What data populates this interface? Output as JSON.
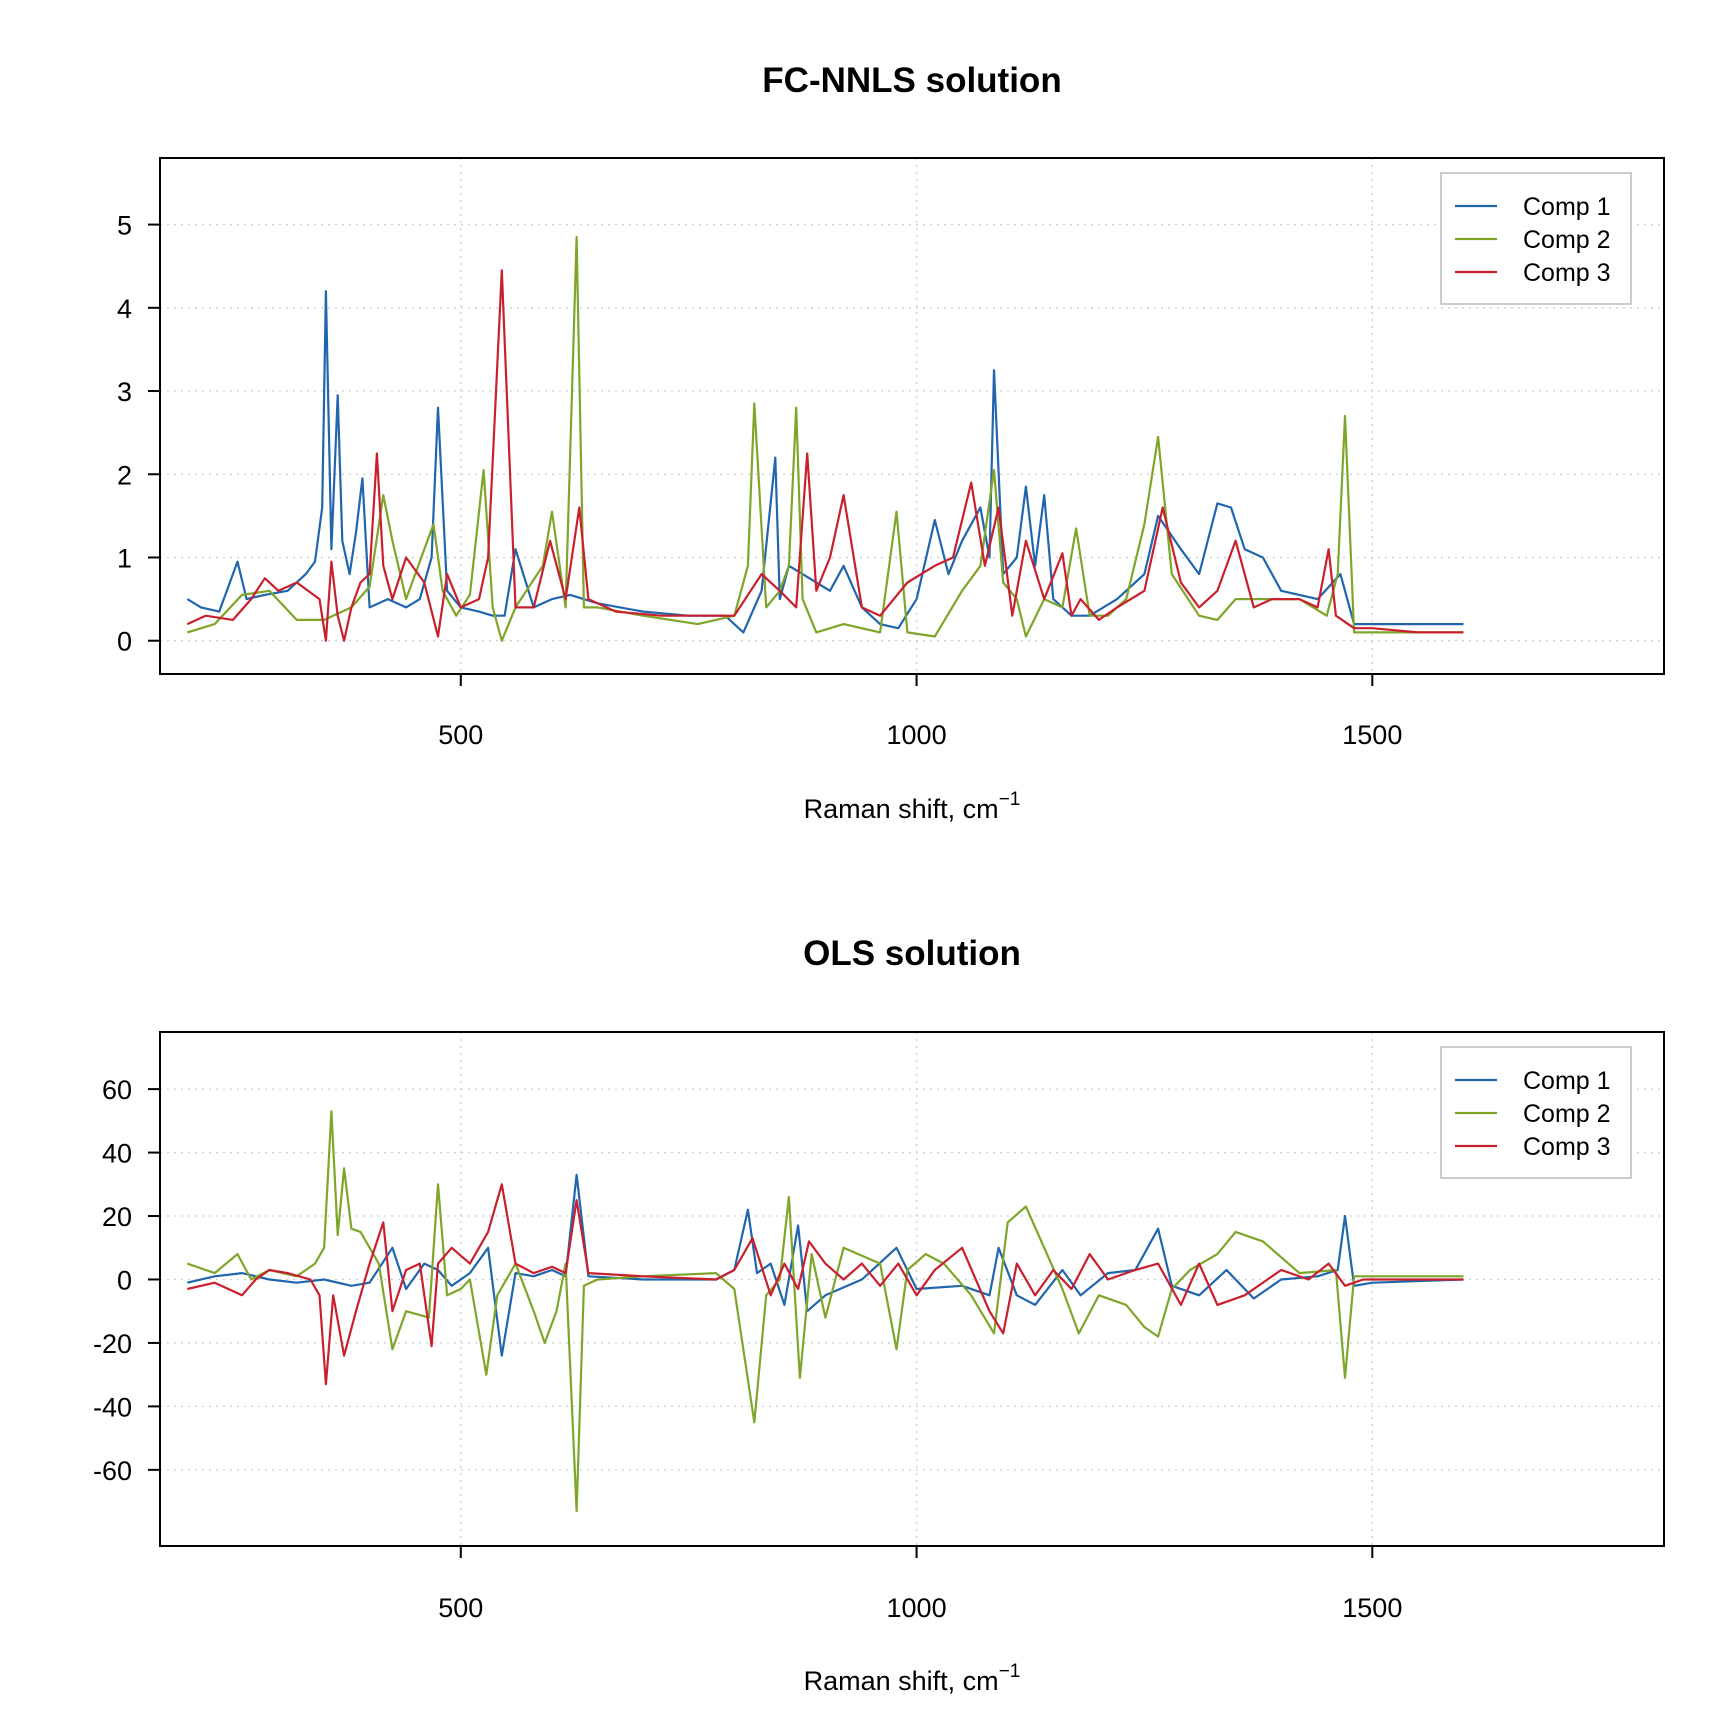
{
  "figure": {
    "background": "#ffffff"
  },
  "chart_data": [
    {
      "type": "line",
      "title": "FC-NNLS solution",
      "xlabel": "Raman shift, cm",
      "xlabel_superscript": "−1",
      "ylabel": "",
      "xlim": [
        170,
        1820
      ],
      "ylim": [
        -0.4,
        5.8
      ],
      "xticks": [
        500,
        1000,
        1500
      ],
      "yticks": [
        0,
        1,
        2,
        3,
        4,
        5
      ],
      "grid": true,
      "legend": "top-right",
      "colors": {
        "Comp 1": "#2166ac",
        "Comp 2": "#7fa52a",
        "Comp 3": "#c8202e"
      },
      "series": [
        {
          "name": "Comp 1",
          "x": [
            200,
            215,
            235,
            255,
            265,
            285,
            310,
            330,
            340,
            348,
            352,
            358,
            365,
            370,
            378,
            385,
            392,
            400,
            420,
            440,
            455,
            468,
            475,
            485,
            500,
            520,
            535,
            548,
            560,
            580,
            600,
            620,
            650,
            700,
            750,
            790,
            810,
            830,
            845,
            850,
            860,
            875,
            890,
            905,
            920,
            940,
            960,
            980,
            1000,
            1020,
            1035,
            1050,
            1070,
            1080,
            1085,
            1095,
            1110,
            1120,
            1130,
            1140,
            1150,
            1170,
            1190,
            1220,
            1250,
            1265,
            1290,
            1310,
            1330,
            1345,
            1360,
            1380,
            1400,
            1420,
            1440,
            1465,
            1480,
            1500,
            1550,
            1600
          ],
          "y": [
            0.5,
            0.4,
            0.35,
            0.95,
            0.5,
            0.55,
            0.6,
            0.8,
            0.95,
            1.6,
            4.2,
            1.1,
            2.95,
            1.2,
            0.8,
            1.3,
            1.95,
            0.4,
            0.5,
            0.4,
            0.5,
            1.0,
            2.8,
            0.6,
            0.4,
            0.35,
            0.3,
            0.3,
            1.1,
            0.4,
            0.5,
            0.55,
            0.45,
            0.35,
            0.3,
            0.3,
            0.1,
            0.6,
            2.2,
            0.5,
            0.9,
            0.8,
            0.7,
            0.6,
            0.9,
            0.4,
            0.2,
            0.15,
            0.5,
            1.45,
            0.8,
            1.2,
            1.6,
            1.0,
            3.25,
            0.8,
            1.0,
            1.85,
            0.9,
            1.75,
            0.5,
            0.3,
            0.3,
            0.5,
            0.8,
            1.5,
            1.1,
            0.8,
            1.65,
            1.6,
            1.1,
            1.0,
            0.6,
            0.55,
            0.5,
            0.8,
            0.2,
            0.2,
            0.2,
            0.2
          ]
        },
        {
          "name": "Comp 2",
          "x": [
            200,
            230,
            260,
            290,
            320,
            350,
            380,
            400,
            415,
            425,
            440,
            460,
            470,
            480,
            495,
            510,
            525,
            535,
            545,
            560,
            590,
            600,
            615,
            627,
            635,
            650,
            700,
            760,
            800,
            815,
            822,
            835,
            850,
            860,
            868,
            875,
            890,
            920,
            960,
            978,
            990,
            1020,
            1050,
            1070,
            1085,
            1095,
            1110,
            1120,
            1140,
            1160,
            1175,
            1190,
            1210,
            1230,
            1250,
            1265,
            1280,
            1310,
            1330,
            1350,
            1380,
            1420,
            1450,
            1462,
            1470,
            1480,
            1500,
            1550,
            1600
          ],
          "y": [
            0.1,
            0.2,
            0.55,
            0.6,
            0.25,
            0.25,
            0.4,
            0.65,
            1.75,
            1.2,
            0.5,
            1.1,
            1.4,
            0.6,
            0.3,
            0.55,
            2.05,
            0.4,
            0.0,
            0.4,
            0.9,
            1.55,
            0.4,
            4.85,
            0.4,
            0.4,
            0.3,
            0.2,
            0.3,
            0.9,
            2.85,
            0.4,
            0.6,
            0.9,
            2.8,
            0.5,
            0.1,
            0.2,
            0.1,
            1.55,
            0.1,
            0.05,
            0.6,
            0.9,
            2.05,
            0.7,
            0.5,
            0.05,
            0.5,
            0.4,
            1.35,
            0.3,
            0.3,
            0.5,
            1.4,
            2.45,
            0.8,
            0.3,
            0.25,
            0.5,
            0.5,
            0.5,
            0.3,
            0.8,
            2.7,
            0.1,
            0.1,
            0.1,
            0.1
          ]
        },
        {
          "name": "Comp 3",
          "x": [
            200,
            220,
            250,
            270,
            285,
            300,
            320,
            345,
            352,
            358,
            365,
            372,
            380,
            390,
            400,
            408,
            415,
            425,
            440,
            460,
            475,
            485,
            500,
            520,
            530,
            545,
            560,
            580,
            598,
            615,
            630,
            640,
            670,
            720,
            760,
            800,
            830,
            850,
            868,
            880,
            890,
            905,
            920,
            940,
            960,
            990,
            1020,
            1040,
            1060,
            1075,
            1090,
            1105,
            1120,
            1140,
            1160,
            1170,
            1180,
            1200,
            1220,
            1250,
            1270,
            1290,
            1310,
            1330,
            1350,
            1370,
            1390,
            1420,
            1440,
            1452,
            1460,
            1480,
            1500,
            1550,
            1600
          ],
          "y": [
            0.2,
            0.3,
            0.25,
            0.5,
            0.75,
            0.6,
            0.7,
            0.5,
            0.0,
            0.95,
            0.3,
            0.0,
            0.4,
            0.7,
            0.8,
            2.25,
            0.9,
            0.5,
            1.0,
            0.7,
            0.05,
            0.8,
            0.4,
            0.5,
            1.0,
            4.45,
            0.4,
            0.4,
            1.2,
            0.5,
            1.6,
            0.5,
            0.35,
            0.3,
            0.3,
            0.3,
            0.8,
            0.6,
            0.4,
            2.25,
            0.6,
            1.0,
            1.75,
            0.4,
            0.3,
            0.7,
            0.9,
            1.0,
            1.9,
            0.9,
            1.6,
            0.3,
            1.2,
            0.5,
            1.05,
            0.3,
            0.5,
            0.25,
            0.4,
            0.6,
            1.6,
            0.7,
            0.4,
            0.6,
            1.2,
            0.4,
            0.5,
            0.5,
            0.4,
            1.1,
            0.3,
            0.15,
            0.15,
            0.1,
            0.1
          ]
        }
      ]
    },
    {
      "type": "line",
      "title": "OLS solution",
      "xlabel": "Raman shift, cm",
      "xlabel_superscript": "−1",
      "ylabel": "",
      "xlim": [
        170,
        1820
      ],
      "ylim": [
        -84,
        78
      ],
      "xticks": [
        500,
        1000,
        1500
      ],
      "yticks": [
        -60,
        -40,
        -20,
        0,
        20,
        40,
        60
      ],
      "grid": true,
      "legend": "top-right",
      "colors": {
        "Comp 1": "#2166ac",
        "Comp 2": "#7fa52a",
        "Comp 3": "#c8202e"
      },
      "series": [
        {
          "name": "Comp 1",
          "x": [
            200,
            230,
            260,
            290,
            320,
            350,
            380,
            400,
            425,
            440,
            460,
            475,
            490,
            510,
            530,
            545,
            560,
            580,
            600,
            615,
            627,
            640,
            700,
            780,
            800,
            815,
            825,
            840,
            855,
            870,
            880,
            900,
            940,
            978,
            1000,
            1050,
            1080,
            1090,
            1110,
            1130,
            1160,
            1180,
            1210,
            1240,
            1265,
            1280,
            1310,
            1340,
            1370,
            1400,
            1440,
            1462,
            1470,
            1480,
            1500,
            1600
          ],
          "y": [
            -1,
            1,
            2,
            0,
            -1,
            0,
            -2,
            -1,
            10,
            -3,
            5,
            3,
            -2,
            2,
            10,
            -24,
            2,
            1,
            3,
            1,
            33,
            1,
            0,
            0,
            3,
            22,
            2,
            5,
            -8,
            17,
            -10,
            -5,
            0,
            10,
            -3,
            -2,
            -5,
            10,
            -5,
            -8,
            3,
            -5,
            2,
            3,
            16,
            -2,
            -5,
            3,
            -6,
            0,
            1,
            3,
            20,
            -2,
            -1,
            0
          ]
        },
        {
          "name": "Comp 2",
          "x": [
            200,
            230,
            255,
            270,
            290,
            320,
            340,
            350,
            358,
            365,
            372,
            380,
            390,
            410,
            425,
            440,
            465,
            475,
            485,
            500,
            510,
            528,
            540,
            560,
            580,
            592,
            605,
            615,
            627,
            635,
            650,
            700,
            780,
            800,
            822,
            835,
            850,
            860,
            872,
            885,
            900,
            920,
            960,
            978,
            990,
            1010,
            1030,
            1060,
            1085,
            1100,
            1120,
            1140,
            1160,
            1178,
            1200,
            1230,
            1250,
            1265,
            1280,
            1300,
            1330,
            1350,
            1380,
            1420,
            1460,
            1470,
            1480,
            1500,
            1550,
            1600
          ],
          "y": [
            5,
            2,
            8,
            0,
            3,
            1,
            5,
            10,
            53,
            14,
            35,
            16,
            15,
            5,
            -22,
            -10,
            -12,
            30,
            -5,
            -3,
            0,
            -30,
            -5,
            5,
            -10,
            -20,
            -10,
            5,
            -73,
            -2,
            0,
            1,
            2,
            -3,
            -45,
            -5,
            0,
            26,
            -31,
            8,
            -12,
            10,
            5,
            -22,
            3,
            8,
            5,
            -5,
            -17,
            18,
            23,
            10,
            -3,
            -17,
            -5,
            -8,
            -15,
            -18,
            -3,
            3,
            8,
            15,
            12,
            2,
            3,
            -31,
            1,
            1,
            1,
            1
          ]
        },
        {
          "name": "Comp 3",
          "x": [
            200,
            230,
            260,
            275,
            290,
            310,
            335,
            345,
            352,
            360,
            372,
            385,
            400,
            415,
            425,
            440,
            455,
            468,
            475,
            490,
            510,
            530,
            545,
            560,
            580,
            600,
            615,
            627,
            640,
            700,
            780,
            800,
            820,
            840,
            855,
            870,
            882,
            900,
            920,
            940,
            960,
            980,
            1000,
            1020,
            1050,
            1080,
            1095,
            1110,
            1130,
            1150,
            1170,
            1190,
            1210,
            1240,
            1265,
            1290,
            1310,
            1330,
            1360,
            1400,
            1430,
            1452,
            1470,
            1490,
            1550,
            1600
          ],
          "y": [
            -3,
            -1,
            -5,
            0,
            3,
            2,
            0,
            -5,
            -33,
            -5,
            -24,
            -10,
            5,
            18,
            -10,
            3,
            5,
            -21,
            5,
            10,
            5,
            15,
            30,
            5,
            2,
            4,
            2,
            25,
            2,
            1,
            0,
            3,
            13,
            -5,
            5,
            -3,
            12,
            5,
            0,
            5,
            -2,
            5,
            -5,
            3,
            10,
            -10,
            -17,
            5,
            -5,
            3,
            -3,
            8,
            0,
            3,
            5,
            -8,
            5,
            -8,
            -5,
            3,
            0,
            5,
            -2,
            0,
            0,
            0
          ]
        }
      ]
    }
  ]
}
